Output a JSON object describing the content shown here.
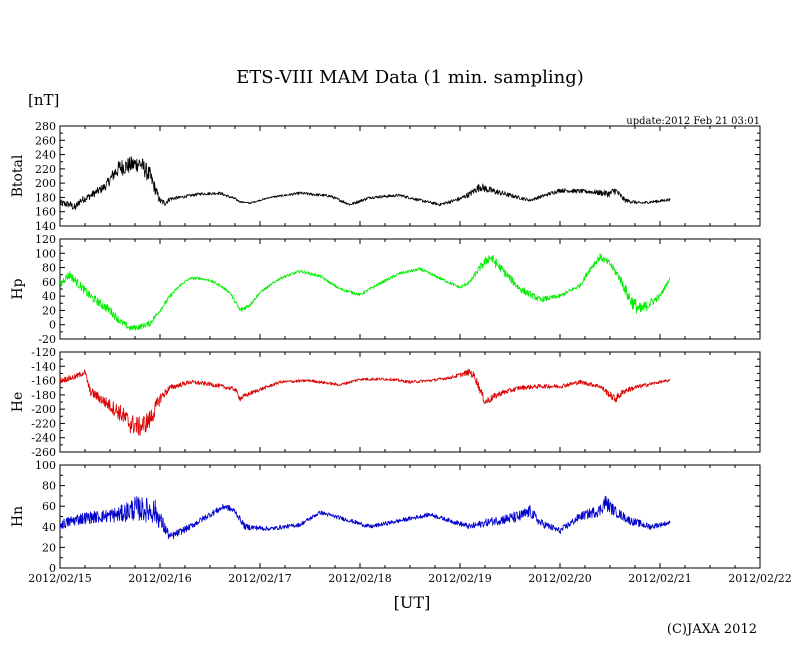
{
  "title": "ETS-VIII MAM Data (1 min. sampling)",
  "unit": "[nT]",
  "update": "update:2012 Feb 21 03:01",
  "xlabel": "[UT]",
  "credit": "(C)JAXA 2012",
  "chart_data": {
    "type": "line",
    "title": "ETS-VIII MAM Data (1 min. sampling)",
    "xlabel": "[UT]",
    "ylabel": "[nT]",
    "x_unit": "days since 2012/02/15 00:00 UT",
    "xlim": [
      0,
      7
    ],
    "x_ticks": [
      "2012/02/15",
      "2012/02/16",
      "2012/02/17",
      "2012/02/18",
      "2012/02/19",
      "2012/02/20",
      "2012/02/21",
      "2012/02/22"
    ],
    "x_minor_per_major": 4,
    "panels": [
      {
        "name": "Btotal",
        "label": "Btotal",
        "color": "#000000",
        "ylim": [
          140,
          280
        ],
        "yticks": [
          140,
          160,
          180,
          200,
          220,
          240,
          260,
          280
        ],
        "tick_labels": [
          "140",
          "160",
          "180",
          "200",
          "220",
          "240",
          "260",
          "280"
        ],
        "x": [
          0,
          0.1,
          0.15,
          0.2,
          0.3,
          0.45,
          0.55,
          0.6,
          0.7,
          0.8,
          0.9,
          1.0,
          1.05,
          1.1,
          1.2,
          1.4,
          1.6,
          1.75,
          1.8,
          1.9,
          2.1,
          2.4,
          2.7,
          2.9,
          3.1,
          3.4,
          3.6,
          3.8,
          4.0,
          4.1,
          4.2,
          4.3,
          4.5,
          4.7,
          5.0,
          5.3,
          5.5,
          5.55,
          5.65,
          5.8,
          6.0,
          6.1
        ],
        "y": [
          172,
          170,
          165,
          175,
          182,
          195,
          215,
          222,
          225,
          228,
          210,
          175,
          172,
          178,
          180,
          185,
          186,
          178,
          174,
          172,
          180,
          186,
          182,
          170,
          180,
          183,
          176,
          170,
          178,
          185,
          195,
          190,
          183,
          176,
          190,
          188,
          185,
          190,
          176,
          172,
          175,
          177
        ],
        "noise": [
          5,
          5,
          6,
          5,
          5,
          6,
          10,
          12,
          12,
          12,
          12,
          5,
          4,
          3,
          2,
          2,
          2,
          2,
          1,
          1,
          1,
          2,
          2,
          2,
          2,
          2,
          2,
          2,
          3,
          4,
          6,
          5,
          3,
          2,
          3,
          3,
          5,
          6,
          3,
          2,
          2,
          2
        ]
      },
      {
        "name": "Hp",
        "label": "Hp",
        "color": "#00ee00",
        "ylim": [
          -20,
          120
        ],
        "yticks": [
          -20,
          0,
          20,
          40,
          60,
          80,
          100,
          120
        ],
        "tick_labels": [
          "-20",
          "0",
          "20",
          "40",
          "60",
          "80",
          "100",
          "120"
        ],
        "x": [
          0,
          0.05,
          0.1,
          0.15,
          0.2,
          0.3,
          0.4,
          0.5,
          0.6,
          0.7,
          0.8,
          0.9,
          1.0,
          1.1,
          1.2,
          1.3,
          1.4,
          1.5,
          1.6,
          1.7,
          1.8,
          1.9,
          2.0,
          2.2,
          2.4,
          2.6,
          2.8,
          3.0,
          3.2,
          3.4,
          3.6,
          3.8,
          4.0,
          4.1,
          4.2,
          4.3,
          4.4,
          4.6,
          4.8,
          5.0,
          5.2,
          5.3,
          5.4,
          5.5,
          5.6,
          5.7,
          5.8,
          6.0,
          6.1
        ],
        "y": [
          55,
          65,
          70,
          62,
          55,
          40,
          30,
          20,
          5,
          -5,
          -3,
          2,
          20,
          40,
          55,
          65,
          65,
          62,
          55,
          45,
          20,
          28,
          45,
          65,
          75,
          68,
          50,
          42,
          58,
          72,
          78,
          65,
          52,
          60,
          80,
          95,
          80,
          50,
          35,
          40,
          55,
          78,
          95,
          85,
          65,
          35,
          20,
          40,
          65
        ],
        "noise": [
          6,
          6,
          6,
          6,
          6,
          6,
          6,
          6,
          5,
          4,
          4,
          4,
          3,
          3,
          2,
          2,
          2,
          2,
          2,
          2,
          4,
          3,
          2,
          2,
          2,
          2,
          2,
          2,
          2,
          2,
          2,
          2,
          2,
          3,
          5,
          8,
          6,
          5,
          4,
          3,
          3,
          4,
          5,
          5,
          6,
          10,
          10,
          4,
          2
        ]
      },
      {
        "name": "He",
        "label": "He",
        "color": "#dd0000",
        "ylim": [
          -260,
          -120
        ],
        "yticks": [
          -260,
          -240,
          -220,
          -200,
          -180,
          -160,
          -140,
          -120
        ],
        "tick_labels": [
          "-260",
          "-240",
          "-220",
          "-200",
          "-180",
          "-160",
          "-140",
          "-120"
        ],
        "x": [
          0,
          0.15,
          0.25,
          0.3,
          0.45,
          0.6,
          0.7,
          0.8,
          0.9,
          1.0,
          1.1,
          1.3,
          1.5,
          1.75,
          1.8,
          1.9,
          2.2,
          2.5,
          2.8,
          3.0,
          3.3,
          3.5,
          3.7,
          3.9,
          4.0,
          4.1,
          4.15,
          4.25,
          4.4,
          4.6,
          4.8,
          5.0,
          5.2,
          5.4,
          5.5,
          5.55,
          5.65,
          5.8,
          6.0,
          6.1
        ],
        "y": [
          -160,
          -155,
          -148,
          -175,
          -190,
          -205,
          -220,
          -225,
          -215,
          -185,
          -170,
          -162,
          -165,
          -172,
          -185,
          -178,
          -162,
          -160,
          -166,
          -158,
          -158,
          -162,
          -160,
          -156,
          -152,
          -148,
          -155,
          -190,
          -178,
          -170,
          -168,
          -168,
          -162,
          -168,
          -180,
          -186,
          -174,
          -168,
          -162,
          -160
        ],
        "noise": [
          4,
          4,
          4,
          6,
          8,
          12,
          14,
          14,
          14,
          8,
          4,
          3,
          3,
          3,
          4,
          3,
          2,
          2,
          2,
          2,
          2,
          2,
          2,
          2,
          3,
          5,
          6,
          6,
          4,
          3,
          3,
          3,
          3,
          3,
          5,
          6,
          4,
          3,
          2,
          2
        ]
      },
      {
        "name": "Hn",
        "label": "Hn",
        "color": "#0000cc",
        "ylim": [
          0,
          100
        ],
        "yticks": [
          0,
          20,
          40,
          60,
          80,
          100
        ],
        "tick_labels": [
          "0",
          "20",
          "40",
          "60",
          "80",
          "100"
        ],
        "x": [
          0,
          0.2,
          0.4,
          0.6,
          0.75,
          0.95,
          1.1,
          1.3,
          1.5,
          1.65,
          1.75,
          1.85,
          2.1,
          2.4,
          2.6,
          2.9,
          3.1,
          3.4,
          3.7,
          3.9,
          4.1,
          4.3,
          4.6,
          4.7,
          4.8,
          5.0,
          5.2,
          5.4,
          5.45,
          5.55,
          5.7,
          5.9,
          6.1
        ],
        "y": [
          42,
          48,
          50,
          52,
          58,
          55,
          30,
          40,
          52,
          60,
          55,
          40,
          38,
          42,
          54,
          46,
          40,
          46,
          52,
          46,
          40,
          45,
          50,
          55,
          44,
          36,
          50,
          56,
          64,
          55,
          46,
          40,
          44
        ],
        "noise": [
          5,
          6,
          6,
          8,
          12,
          12,
          4,
          3,
          3,
          3,
          3,
          3,
          2,
          2,
          2,
          2,
          2,
          2,
          2,
          2,
          3,
          4,
          6,
          6,
          4,
          3,
          4,
          6,
          8,
          5,
          4,
          3,
          2
        ]
      }
    ]
  }
}
